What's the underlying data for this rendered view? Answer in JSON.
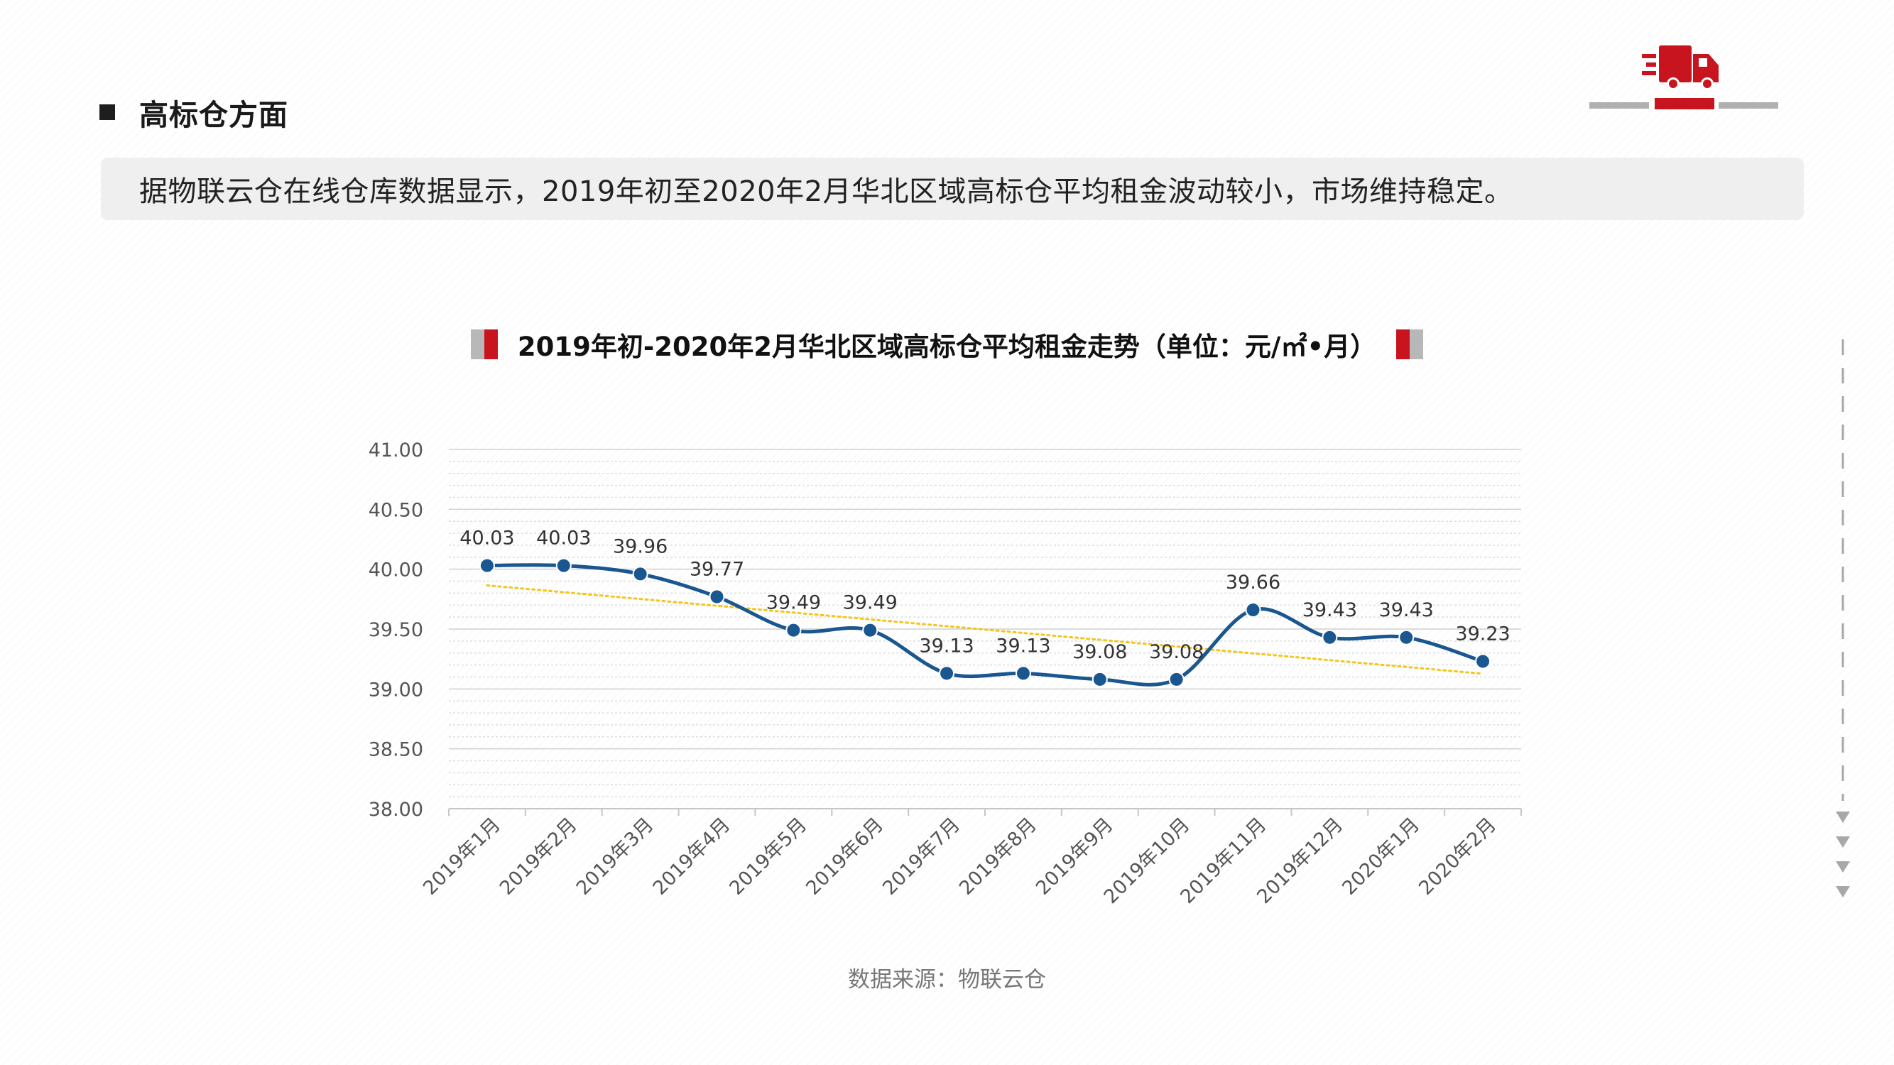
{
  "section": {
    "title": "高标仓方面"
  },
  "summary": {
    "text": "据物联云仓在线仓库数据显示，2019年初至2020年2月华北区域高标仓平均租金波动较小，市场维持稳定。"
  },
  "chart_title": "2019年初-2020年2月华北区域高标仓平均租金走势（单位：元/㎡•月）",
  "source": "数据来源：物联云仓",
  "colors": {
    "line": "#1a5690",
    "trend": "#f5c518",
    "accent_red": "#c8141e",
    "accent_gray": "#b8b8b8"
  },
  "chart_data": {
    "type": "line",
    "title": "2019年初-2020年2月华北区域高标仓平均租金走势（单位：元/㎡•月）",
    "categories": [
      "2019年1月",
      "2019年2月",
      "2019年3月",
      "2019年4月",
      "2019年5月",
      "2019年6月",
      "2019年7月",
      "2019年8月",
      "2019年9月",
      "2019年10月",
      "2019年11月",
      "2019年12月",
      "2020年1月",
      "2020年2月"
    ],
    "series": [
      {
        "values": [
          40.03,
          40.03,
          39.96,
          39.77,
          39.49,
          39.49,
          39.13,
          39.13,
          39.08,
          39.08,
          39.66,
          39.43,
          39.43,
          39.23
        ]
      }
    ],
    "data_labels": [
      "40.03",
      "40.03",
      "39.96",
      "39.77",
      "39.49",
      "39.49",
      "39.13",
      "39.13",
      "39.08",
      "39.08",
      "39.66",
      "39.43",
      "39.43",
      "39.23"
    ],
    "trendline": {
      "type": "linear",
      "style": "dotted"
    },
    "ylim": [
      38.0,
      41.0
    ],
    "yticks": [
      "38.00",
      "38.50",
      "39.00",
      "39.50",
      "40.00",
      "40.50",
      "41.00"
    ],
    "xlabel": "",
    "ylabel": "",
    "grid": true,
    "legend": "none"
  }
}
